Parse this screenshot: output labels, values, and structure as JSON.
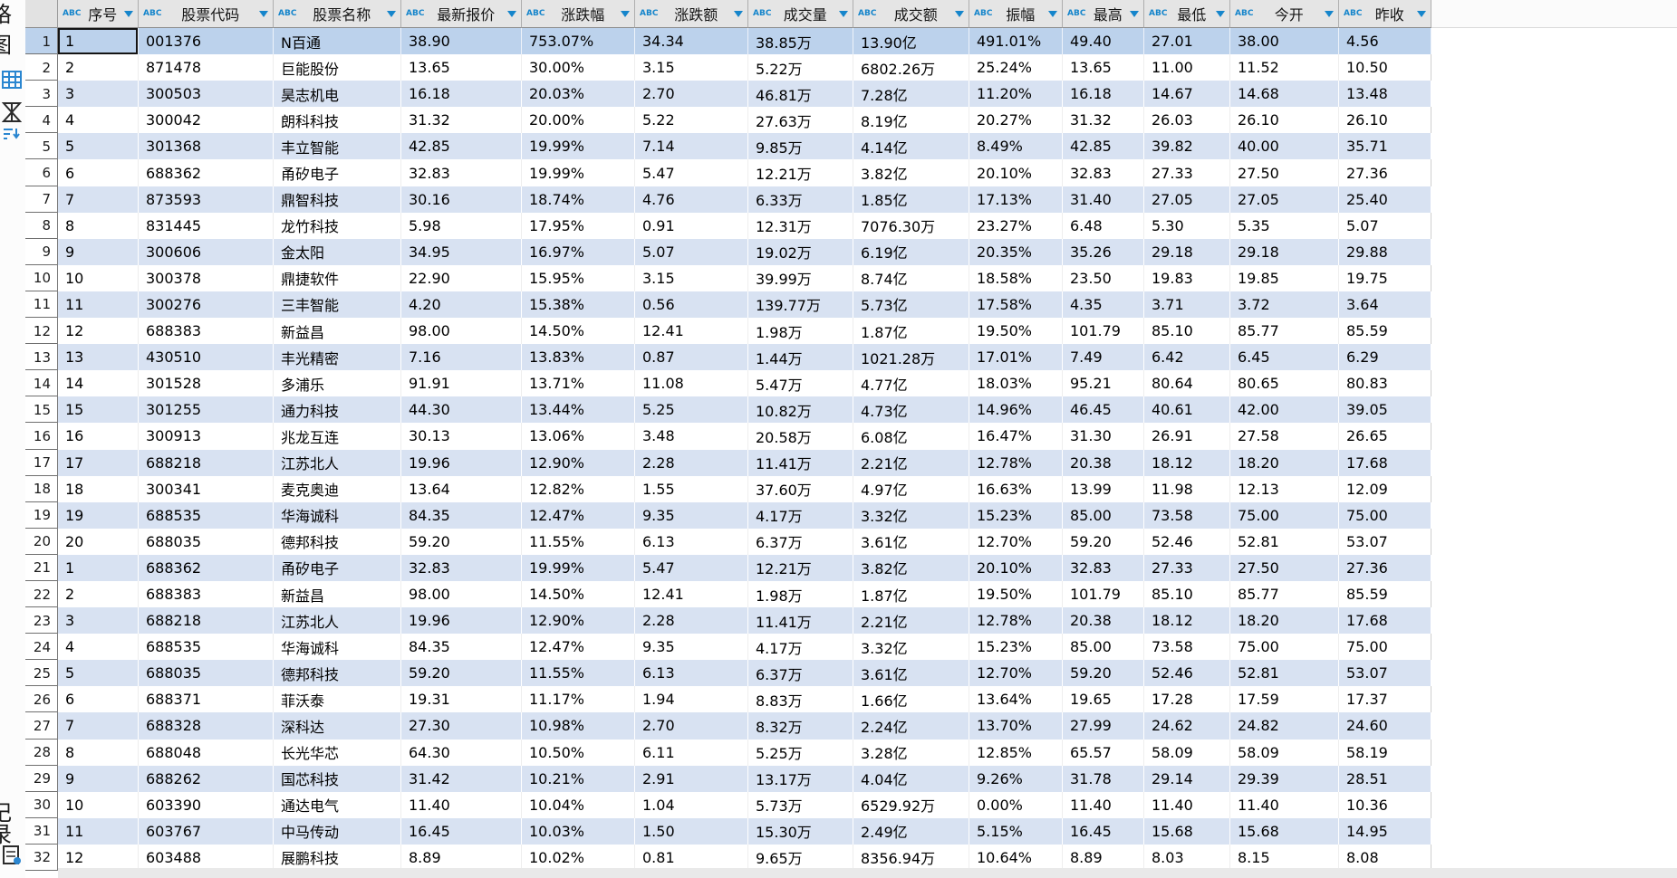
{
  "accent_colors": {
    "filter_icon_blue": "#1585cb",
    "toolbar_icon_blue": "#2a86d0",
    "row_stripe_blue": "#d8e2f2",
    "selected_row_blue": "#bcd2ec",
    "selected_cell_blue": "#a9c6e6",
    "header_gray": "#e5e5e5"
  },
  "left_toolbar": {
    "fragments": [
      "格",
      "图",
      "记",
      "录"
    ],
    "icons": [
      "grid-view-icon",
      "hourglass-filter-icon",
      "sort-filter-icon",
      "records-clipboard-icon"
    ]
  },
  "selection": {
    "row_index": 0,
    "col_index": 0
  },
  "table": {
    "header_type_badge": "ABC",
    "columns": [
      {
        "key": "index",
        "label": "序号"
      },
      {
        "key": "code",
        "label": "股票代码"
      },
      {
        "key": "name",
        "label": "股票名称"
      },
      {
        "key": "price",
        "label": "最新报价"
      },
      {
        "key": "change_pct",
        "label": "涨跌幅"
      },
      {
        "key": "change_amt",
        "label": "涨跌额"
      },
      {
        "key": "volume",
        "label": "成交量"
      },
      {
        "key": "turnover",
        "label": "成交额"
      },
      {
        "key": "amplitude",
        "label": "振幅"
      },
      {
        "key": "high",
        "label": "最高"
      },
      {
        "key": "low",
        "label": "最低"
      },
      {
        "key": "open",
        "label": "今开"
      },
      {
        "key": "prev_close",
        "label": "昨收"
      }
    ],
    "rows": [
      [
        "1",
        "001376",
        "N百通",
        "38.90",
        "753.07%",
        "34.34",
        "38.85万",
        "13.90亿",
        "491.01%",
        "49.40",
        "27.01",
        "38.00",
        "4.56"
      ],
      [
        "2",
        "871478",
        "巨能股份",
        "13.65",
        "30.00%",
        "3.15",
        "5.22万",
        "6802.26万",
        "25.24%",
        "13.65",
        "11.00",
        "11.52",
        "10.50"
      ],
      [
        "3",
        "300503",
        "昊志机电",
        "16.18",
        "20.03%",
        "2.70",
        "46.81万",
        "7.28亿",
        "11.20%",
        "16.18",
        "14.67",
        "14.68",
        "13.48"
      ],
      [
        "4",
        "300042",
        "朗科科技",
        "31.32",
        "20.00%",
        "5.22",
        "27.63万",
        "8.19亿",
        "20.27%",
        "31.32",
        "26.03",
        "26.10",
        "26.10"
      ],
      [
        "5",
        "301368",
        "丰立智能",
        "42.85",
        "19.99%",
        "7.14",
        "9.85万",
        "4.14亿",
        "8.49%",
        "42.85",
        "39.82",
        "40.00",
        "35.71"
      ],
      [
        "6",
        "688362",
        "甬矽电子",
        "32.83",
        "19.99%",
        "5.47",
        "12.21万",
        "3.82亿",
        "20.10%",
        "32.83",
        "27.33",
        "27.50",
        "27.36"
      ],
      [
        "7",
        "873593",
        "鼎智科技",
        "30.16",
        "18.74%",
        "4.76",
        "6.33万",
        "1.85亿",
        "17.13%",
        "31.40",
        "27.05",
        "27.05",
        "25.40"
      ],
      [
        "8",
        "831445",
        "龙竹科技",
        "5.98",
        "17.95%",
        "0.91",
        "12.31万",
        "7076.30万",
        "23.27%",
        "6.48",
        "5.30",
        "5.35",
        "5.07"
      ],
      [
        "9",
        "300606",
        "金太阳",
        "34.95",
        "16.97%",
        "5.07",
        "19.02万",
        "6.19亿",
        "20.35%",
        "35.26",
        "29.18",
        "29.18",
        "29.88"
      ],
      [
        "10",
        "300378",
        "鼎捷软件",
        "22.90",
        "15.95%",
        "3.15",
        "39.99万",
        "8.74亿",
        "18.58%",
        "23.50",
        "19.83",
        "19.85",
        "19.75"
      ],
      [
        "11",
        "300276",
        "三丰智能",
        "4.20",
        "15.38%",
        "0.56",
        "139.77万",
        "5.73亿",
        "17.58%",
        "4.35",
        "3.71",
        "3.72",
        "3.64"
      ],
      [
        "12",
        "688383",
        "新益昌",
        "98.00",
        "14.50%",
        "12.41",
        "1.98万",
        "1.87亿",
        "19.50%",
        "101.79",
        "85.10",
        "85.77",
        "85.59"
      ],
      [
        "13",
        "430510",
        "丰光精密",
        "7.16",
        "13.83%",
        "0.87",
        "1.44万",
        "1021.28万",
        "17.01%",
        "7.49",
        "6.42",
        "6.45",
        "6.29"
      ],
      [
        "14",
        "301528",
        "多浦乐",
        "91.91",
        "13.71%",
        "11.08",
        "5.47万",
        "4.77亿",
        "18.03%",
        "95.21",
        "80.64",
        "80.65",
        "80.83"
      ],
      [
        "15",
        "301255",
        "通力科技",
        "44.30",
        "13.44%",
        "5.25",
        "10.82万",
        "4.73亿",
        "14.96%",
        "46.45",
        "40.61",
        "42.00",
        "39.05"
      ],
      [
        "16",
        "300913",
        "兆龙互连",
        "30.13",
        "13.06%",
        "3.48",
        "20.58万",
        "6.08亿",
        "16.47%",
        "31.30",
        "26.91",
        "27.58",
        "26.65"
      ],
      [
        "17",
        "688218",
        "江苏北人",
        "19.96",
        "12.90%",
        "2.28",
        "11.41万",
        "2.21亿",
        "12.78%",
        "20.38",
        "18.12",
        "18.20",
        "17.68"
      ],
      [
        "18",
        "300341",
        "麦克奥迪",
        "13.64",
        "12.82%",
        "1.55",
        "37.60万",
        "4.97亿",
        "16.63%",
        "13.99",
        "11.98",
        "12.13",
        "12.09"
      ],
      [
        "19",
        "688535",
        "华海诚科",
        "84.35",
        "12.47%",
        "9.35",
        "4.17万",
        "3.32亿",
        "15.23%",
        "85.00",
        "73.58",
        "75.00",
        "75.00"
      ],
      [
        "20",
        "688035",
        "德邦科技",
        "59.20",
        "11.55%",
        "6.13",
        "6.37万",
        "3.61亿",
        "12.70%",
        "59.20",
        "52.46",
        "52.81",
        "53.07"
      ],
      [
        "1",
        "688362",
        "甬矽电子",
        "32.83",
        "19.99%",
        "5.47",
        "12.21万",
        "3.82亿",
        "20.10%",
        "32.83",
        "27.33",
        "27.50",
        "27.36"
      ],
      [
        "2",
        "688383",
        "新益昌",
        "98.00",
        "14.50%",
        "12.41",
        "1.98万",
        "1.87亿",
        "19.50%",
        "101.79",
        "85.10",
        "85.77",
        "85.59"
      ],
      [
        "3",
        "688218",
        "江苏北人",
        "19.96",
        "12.90%",
        "2.28",
        "11.41万",
        "2.21亿",
        "12.78%",
        "20.38",
        "18.12",
        "18.20",
        "17.68"
      ],
      [
        "4",
        "688535",
        "华海诚科",
        "84.35",
        "12.47%",
        "9.35",
        "4.17万",
        "3.32亿",
        "15.23%",
        "85.00",
        "73.58",
        "75.00",
        "75.00"
      ],
      [
        "5",
        "688035",
        "德邦科技",
        "59.20",
        "11.55%",
        "6.13",
        "6.37万",
        "3.61亿",
        "12.70%",
        "59.20",
        "52.46",
        "52.81",
        "53.07"
      ],
      [
        "6",
        "688371",
        "菲沃泰",
        "19.31",
        "11.17%",
        "1.94",
        "8.83万",
        "1.66亿",
        "13.64%",
        "19.65",
        "17.28",
        "17.59",
        "17.37"
      ],
      [
        "7",
        "688328",
        "深科达",
        "27.30",
        "10.98%",
        "2.70",
        "8.32万",
        "2.24亿",
        "13.70%",
        "27.99",
        "24.62",
        "24.82",
        "24.60"
      ],
      [
        "8",
        "688048",
        "长光华芯",
        "64.30",
        "10.50%",
        "6.11",
        "5.25万",
        "3.28亿",
        "12.85%",
        "65.57",
        "58.09",
        "58.09",
        "58.19"
      ],
      [
        "9",
        "688262",
        "国芯科技",
        "31.42",
        "10.21%",
        "2.91",
        "13.17万",
        "4.04亿",
        "9.26%",
        "31.78",
        "29.14",
        "29.39",
        "28.51"
      ],
      [
        "10",
        "603390",
        "通达电气",
        "11.40",
        "10.04%",
        "1.04",
        "5.73万",
        "6529.92万",
        "0.00%",
        "11.40",
        "11.40",
        "11.40",
        "10.36"
      ],
      [
        "11",
        "603767",
        "中马传动",
        "16.45",
        "10.03%",
        "1.50",
        "15.30万",
        "2.49亿",
        "5.15%",
        "16.45",
        "15.68",
        "15.68",
        "14.95"
      ],
      [
        "12",
        "603488",
        "展鹏科技",
        "8.89",
        "10.02%",
        "0.81",
        "9.65万",
        "8356.94万",
        "10.64%",
        "8.89",
        "8.03",
        "8.15",
        "8.08"
      ]
    ]
  }
}
